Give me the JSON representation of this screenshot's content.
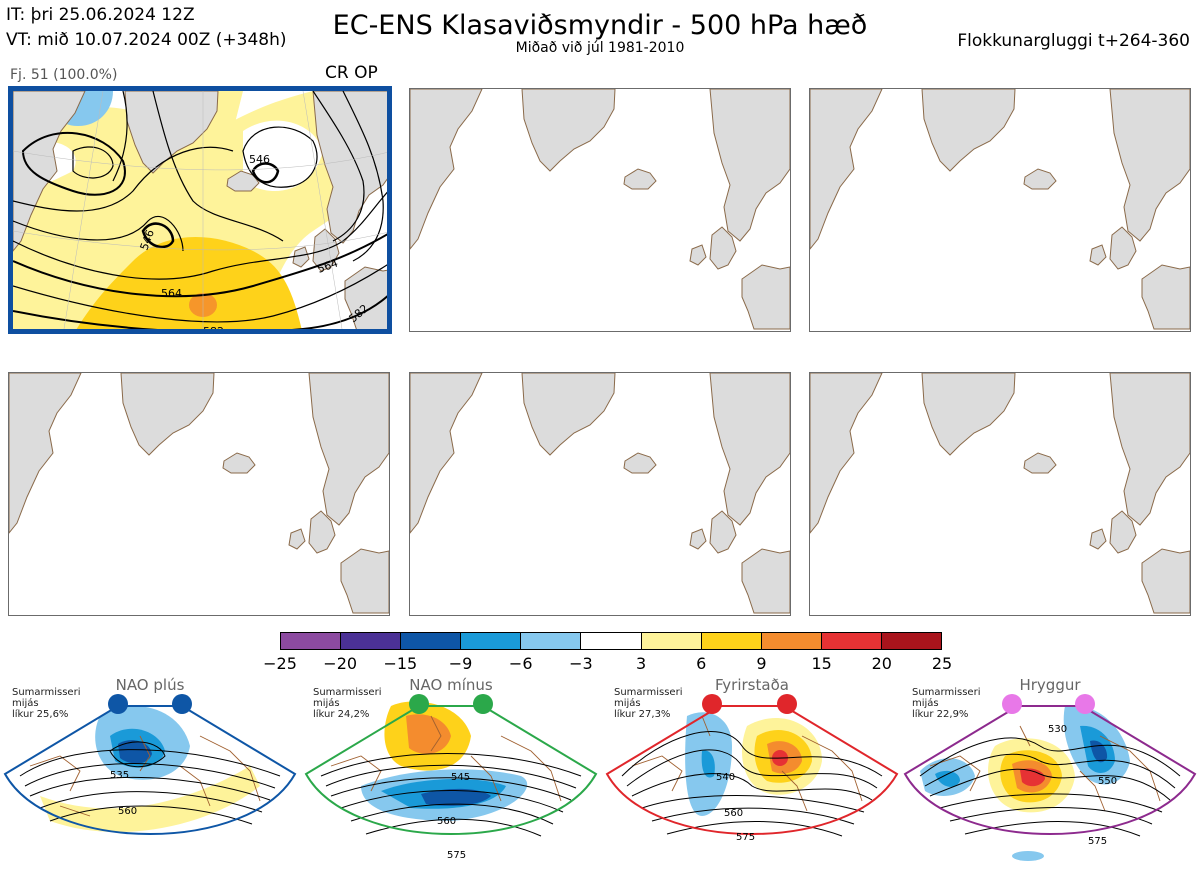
{
  "header": {
    "it_line": "IT: þri 25.06.2024 12Z",
    "vt_line": "VT: mið 10.07.2024 00Z  (+348h)",
    "title": "EC-ENS Klasaviðsmyndir - 500 hPa hæð",
    "subtitle": "Miðað við júl 1981-2010",
    "window": "Flokkunargluggi t+264-360"
  },
  "cluster": {
    "count_label": "Fj. 51 (100.0%)",
    "label": "CR OP",
    "contour_labels": [
      "546",
      "546",
      "564",
      "564",
      "582",
      "582"
    ]
  },
  "colorbar": {
    "colors": [
      "#8c4aa0",
      "#4b3196",
      "#0e56a6",
      "#1a9ad8",
      "#86c8ee",
      "#ffffff",
      "#fef39a",
      "#fed21a",
      "#f48c2e",
      "#e63234",
      "#a9141c"
    ],
    "ticks": [
      "−25",
      "−20",
      "−15",
      "−9",
      "−6",
      "−3",
      "3",
      "6",
      "9",
      "15",
      "20",
      "25"
    ]
  },
  "regimes": [
    {
      "name": "NAO plús",
      "info": [
        "Sumarmisseri",
        "mijás",
        "líkur 25,6%"
      ],
      "color": "#0e56a6",
      "dot_color": "#0e56a6",
      "labels": [
        "535",
        "560"
      ]
    },
    {
      "name": "NAO mínus",
      "info": [
        "Sumarmisseri",
        "mijás",
        "líkur 24,2%"
      ],
      "color": "#2ba84a",
      "dot_color": "#2ba84a",
      "labels": [
        "545",
        "560",
        "575"
      ]
    },
    {
      "name": "Fyrirstaða",
      "info": [
        "Sumarmisseri",
        "mijás",
        "líkur 27,3%"
      ],
      "color": "#e0262b",
      "dot_color": "#e0262b",
      "labels": [
        "540",
        "560",
        "575"
      ]
    },
    {
      "name": "Hryggur",
      "info": [
        "Sumarmisseri",
        "mijás",
        "líkur 22,9%"
      ],
      "color": "#8d2a8e",
      "dot_color": "#e878e8",
      "labels": [
        "530",
        "550",
        "575"
      ]
    }
  ]
}
